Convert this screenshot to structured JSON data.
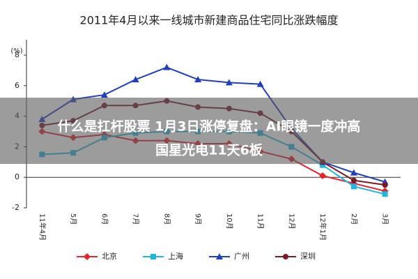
{
  "chart_data": {
    "type": "line",
    "title": "2011年4月以来一线城市新建商品住宅同比涨跌幅度",
    "y_label": "(%)",
    "categories": [
      "11年4月",
      "5月",
      "6月",
      "7月",
      "8月",
      "9月",
      "10月",
      "11月",
      "12月",
      "12年1月",
      "2月",
      "3月"
    ],
    "series": [
      {
        "name": "北京",
        "color": "#e8202a",
        "marker": "diamond",
        "values": [
          3.0,
          2.6,
          2.8,
          2.4,
          2.4,
          2.2,
          2.2,
          1.7,
          1.2,
          0.1,
          -0.4,
          -0.9
        ]
      },
      {
        "name": "上海",
        "color": "#1fb6e0",
        "marker": "square",
        "values": [
          1.5,
          1.6,
          2.6,
          2.9,
          3.0,
          3.0,
          3.0,
          2.9,
          2.0,
          0.8,
          -0.6,
          -1.1
        ]
      },
      {
        "name": "广州",
        "color": "#1f3fc0",
        "marker": "triangle",
        "values": [
          3.8,
          5.1,
          5.4,
          6.4,
          7.2,
          6.4,
          6.2,
          6.1,
          3.2,
          1.0,
          0.3,
          -0.3
        ]
      },
      {
        "name": "深圳",
        "color": "#7a1a22",
        "marker": "circle",
        "values": [
          3.4,
          3.7,
          4.7,
          4.7,
          5.0,
          4.6,
          4.5,
          4.2,
          3.0,
          1.0,
          -0.2,
          -0.5
        ]
      }
    ],
    "ylim": [
      -2,
      8
    ],
    "yticks": [
      -2,
      0,
      2,
      4,
      6,
      8
    ],
    "legend": "bottom"
  },
  "overlay": {
    "lines": [
      "什么是扛杆股票 1月3日涨停复盘：AI眼镜一度冲高",
      "国星光电11天6板"
    ]
  }
}
